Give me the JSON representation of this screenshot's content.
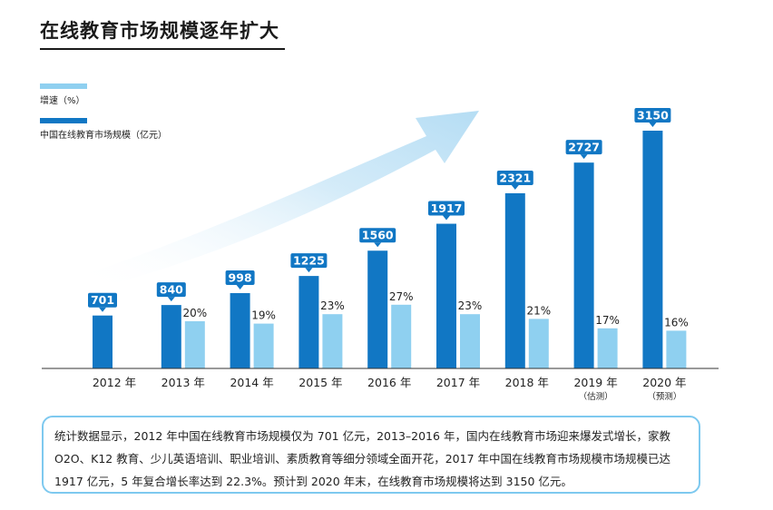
{
  "title": "在线教育市场规模逐年扩大",
  "colors": {
    "market": "#1177c4",
    "growth": "#8fd0f0",
    "arrow": "#d9eefa",
    "axis": "#333333"
  },
  "legend": [
    {
      "label": "增速（%）",
      "color": "#8fd0f0"
    },
    {
      "label": "中国在线教育市场规模（亿元）",
      "color": "#1177c4"
    }
  ],
  "summary": "统计数据显示，2012 年中国在线教育市场规模仅为 701 亿元，2013–2016 年，国内在线教育市场迎来爆发式增长，家教 O2O、K12 教育、少儿英语培训、职业培训、素质教育等细分领域全面开花，2017 年中国在线教育市场规模市场规模已达 1917 亿元，5 年复合增长率达到 22.3%。预计到 2020 年末，在线教育市场规模将达到 3150 亿元。",
  "chart_data": {
    "type": "bar",
    "categories": [
      "2012 年",
      "2013 年",
      "2014 年",
      "2015 年",
      "2016 年",
      "2017 年",
      "2018 年",
      "2019 年",
      "2020 年"
    ],
    "category_notes": [
      "",
      "",
      "",
      "",
      "",
      "",
      "",
      "（估测）",
      "（预测）"
    ],
    "series": [
      {
        "name": "中国在线教育市场规模（亿元）",
        "values": [
          701,
          840,
          998,
          1225,
          1560,
          1917,
          2321,
          2727,
          3150
        ],
        "labels": [
          "701",
          "840",
          "998",
          "1225",
          "1560",
          "1917",
          "2321",
          "2727",
          "3150"
        ]
      },
      {
        "name": "增速（%）",
        "values": [
          null,
          20,
          19,
          23,
          27,
          23,
          21,
          17,
          16
        ],
        "labels": [
          "",
          "20%",
          "19%",
          "23%",
          "27%",
          "23%",
          "21%",
          "17%",
          "16%"
        ]
      }
    ],
    "legend_position": "top-left",
    "grid": false
  }
}
